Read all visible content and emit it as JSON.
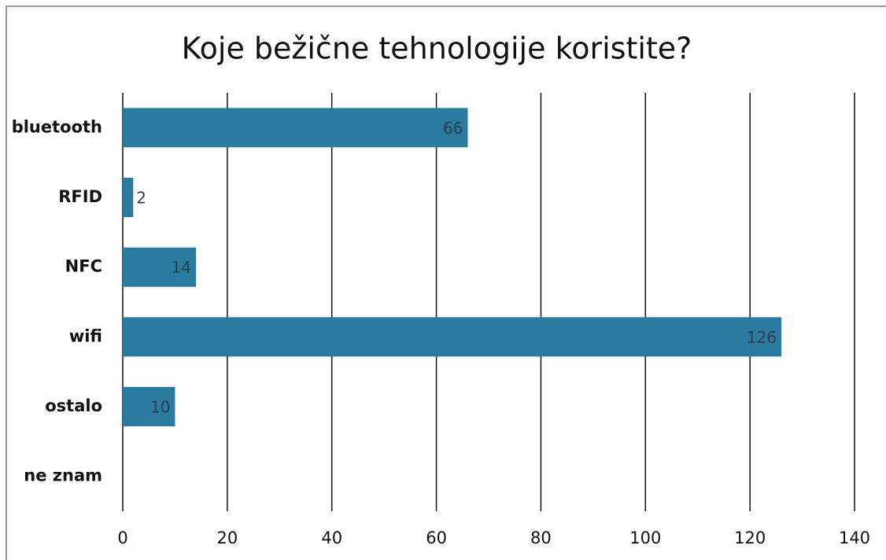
{
  "chart_data": {
    "type": "barh",
    "title": "Koje bežične tehnologije koristite?",
    "categories": [
      "bluetooth",
      "RFID",
      "NFC",
      "wifi",
      "ostalo",
      "ne znam"
    ],
    "values": [
      66,
      2,
      14,
      126,
      10,
      0
    ],
    "value_labels": [
      "66",
      "2",
      "14",
      "126",
      "10",
      null
    ],
    "color": "#2b7aa0",
    "xlim": [
      0,
      140
    ],
    "xticks": [
      0,
      20,
      40,
      60,
      80,
      100,
      120,
      140
    ],
    "grid": true
  }
}
